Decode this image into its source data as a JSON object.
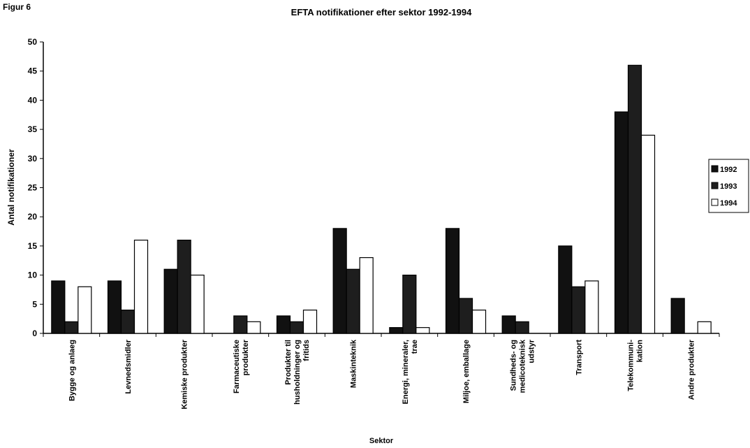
{
  "figure_label": "Figur 6",
  "chart_data": {
    "type": "bar",
    "title": "EFTA notifikationer efter sektor 1992-1994",
    "y_label": "Antal notifikationer",
    "x_label": "Sektor",
    "categories": [
      "Bygge og anlaeg",
      "Levnedsmidler",
      "Kemiske produkter",
      "Farmaceutiske\nprodukter",
      "Produkter til\nhusholdninger og\nfritids",
      "Maskinteknik",
      "Energi, mineraler,\ntrae",
      "Miljoe, emballage",
      "Sundheds- og\nmedicoteknisk\nudstyr",
      "Transport",
      "Telekommuni-\nkation",
      "Andre produkter"
    ],
    "series": [
      {
        "name": "1992",
        "color": "#111111",
        "values": [
          9,
          9,
          11,
          0,
          3,
          18,
          1,
          18,
          3,
          15,
          38,
          6
        ]
      },
      {
        "name": "1993",
        "color": "#1e1e1e",
        "values": [
          2,
          4,
          16,
          3,
          2,
          11,
          10,
          6,
          2,
          8,
          46,
          0
        ]
      },
      {
        "name": "1994",
        "color": "#ffffff",
        "values": [
          8,
          16,
          10,
          2,
          4,
          13,
          1,
          4,
          0,
          9,
          34,
          2
        ]
      }
    ],
    "ylim": [
      0,
      50
    ],
    "yticks": [
      0,
      5,
      10,
      15,
      20,
      25,
      30,
      35,
      40,
      45,
      50
    ],
    "grid": false,
    "legend": "right"
  }
}
